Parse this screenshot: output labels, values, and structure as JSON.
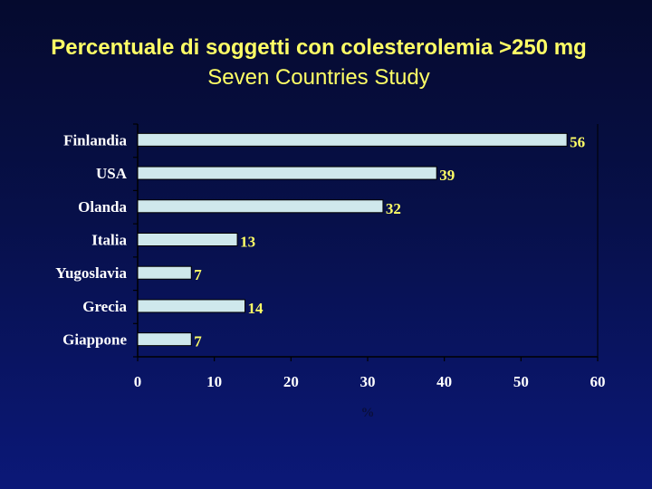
{
  "chart_data": {
    "type": "bar",
    "orientation": "horizontal",
    "title": "Percentuale di soggetti con colesterolemia >250 mg",
    "subtitle": "Seven Countries Study",
    "categories": [
      "Finlandia",
      "USA",
      "Olanda",
      "Italia",
      "Yugoslavia",
      "Grecia",
      "Giappone"
    ],
    "values": [
      56,
      39,
      32,
      13,
      7,
      14,
      7
    ],
    "xlabel": "%",
    "ylabel": "",
    "xlim": [
      0,
      60
    ],
    "xticks": [
      "0",
      "10",
      "20",
      "30",
      "40",
      "50",
      "60"
    ],
    "grid": false,
    "legend": "none",
    "colors": {
      "bar": "#cfe8ec",
      "data_label": "#ffff66",
      "category_label": "#ffffff",
      "tick_label": "#ffffff",
      "title": "#ffff66"
    }
  }
}
